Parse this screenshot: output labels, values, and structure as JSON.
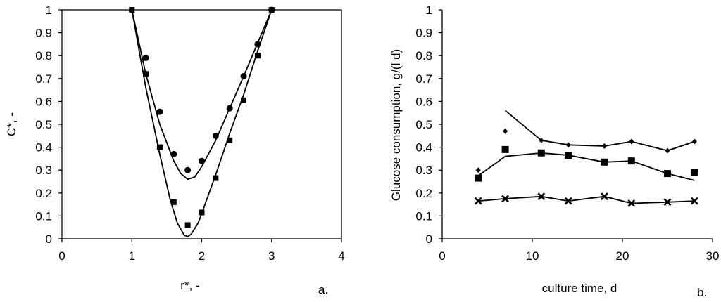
{
  "chart_data": [
    {
      "type": "scatter",
      "panel_label": "a.",
      "xlabel": "r*, -",
      "ylabel": "C*, -",
      "xlim": [
        0,
        4
      ],
      "ylim": [
        0,
        1
      ],
      "xticks": [
        "0",
        "1",
        "2",
        "3",
        "4"
      ],
      "yticks": [
        "0",
        "0.1",
        "0.2",
        "0.3",
        "0.4",
        "0.5",
        "0.6",
        "0.7",
        "0.8",
        "0.9",
        "1"
      ],
      "grid": false,
      "legend": "none",
      "series": [
        {
          "marker": "circle",
          "x": [
            1.2,
            1.4,
            1.6,
            1.8,
            2.0,
            2.2,
            2.4,
            2.6,
            2.8,
            3.0
          ],
          "y": [
            0.79,
            0.555,
            0.37,
            0.3,
            0.34,
            0.45,
            0.57,
            0.71,
            0.85,
            1.0
          ]
        },
        {
          "marker": "square",
          "x": [
            1.0,
            1.2,
            1.4,
            1.6,
            1.8,
            2.0,
            2.2,
            2.4,
            2.6,
            2.8,
            3.0
          ],
          "y": [
            1.0,
            0.72,
            0.4,
            0.16,
            0.06,
            0.115,
            0.265,
            0.43,
            0.605,
            0.8,
            1.0
          ]
        },
        {
          "type": "line",
          "x": [
            1.0,
            1.2,
            1.4,
            1.6,
            1.7,
            1.8,
            1.9,
            2.0,
            2.2,
            2.4,
            2.6,
            2.8,
            3.0
          ],
          "y": [
            1.0,
            0.72,
            0.5,
            0.34,
            0.285,
            0.26,
            0.27,
            0.315,
            0.43,
            0.57,
            0.71,
            0.855,
            1.0
          ]
        },
        {
          "type": "line",
          "x": [
            1.0,
            1.2,
            1.4,
            1.55,
            1.65,
            1.75,
            1.8,
            1.85,
            1.95,
            2.0,
            2.2,
            2.4,
            2.6,
            2.8,
            3.0
          ],
          "y": [
            1.0,
            0.66,
            0.37,
            0.17,
            0.07,
            0.015,
            0.01,
            0.02,
            0.07,
            0.11,
            0.28,
            0.46,
            0.63,
            0.82,
            1.0
          ]
        }
      ]
    },
    {
      "type": "line",
      "panel_label": "b.",
      "xlabel": "culture time, d",
      "ylabel": "Glucose consumption, g/(l d)",
      "xlim": [
        0,
        30
      ],
      "ylim": [
        0,
        1
      ],
      "xticks": [
        "0",
        "10",
        "20",
        "30"
      ],
      "yticks": [
        "0",
        "0.1",
        "0.2",
        "0.3",
        "0.4",
        "0.5",
        "0.6",
        "0.7",
        "0.8",
        "0.9",
        "1"
      ],
      "grid": false,
      "legend": "none",
      "series": [
        {
          "marker": "diamond",
          "x": [
            4,
            7,
            11,
            14,
            18,
            21,
            25,
            28
          ],
          "y": [
            0.3,
            0.47,
            0.43,
            0.41,
            0.405,
            0.425,
            0.385,
            0.425
          ]
        },
        {
          "type": "line",
          "x": [
            7,
            11,
            14,
            18,
            21,
            25,
            28
          ],
          "y": [
            0.56,
            0.43,
            0.41,
            0.405,
            0.425,
            0.385,
            0.425
          ]
        },
        {
          "marker": "square",
          "x": [
            4,
            7,
            11,
            14,
            18,
            21,
            25,
            28
          ],
          "y": [
            0.265,
            0.39,
            0.375,
            0.365,
            0.335,
            0.34,
            0.285,
            0.29
          ]
        },
        {
          "type": "line",
          "x": [
            4,
            7,
            11,
            14,
            18,
            21,
            25,
            28
          ],
          "y": [
            0.275,
            0.36,
            0.375,
            0.365,
            0.335,
            0.34,
            0.285,
            0.255
          ]
        },
        {
          "marker": "x",
          "x": [
            4,
            7,
            11,
            14,
            18,
            21,
            25,
            28
          ],
          "y": [
            0.165,
            0.175,
            0.185,
            0.165,
            0.185,
            0.155,
            0.16,
            0.165
          ]
        },
        {
          "type": "line",
          "x": [
            4,
            7,
            11,
            14,
            18,
            21,
            25,
            28
          ],
          "y": [
            0.165,
            0.175,
            0.185,
            0.165,
            0.185,
            0.155,
            0.16,
            0.165
          ]
        }
      ]
    }
  ]
}
